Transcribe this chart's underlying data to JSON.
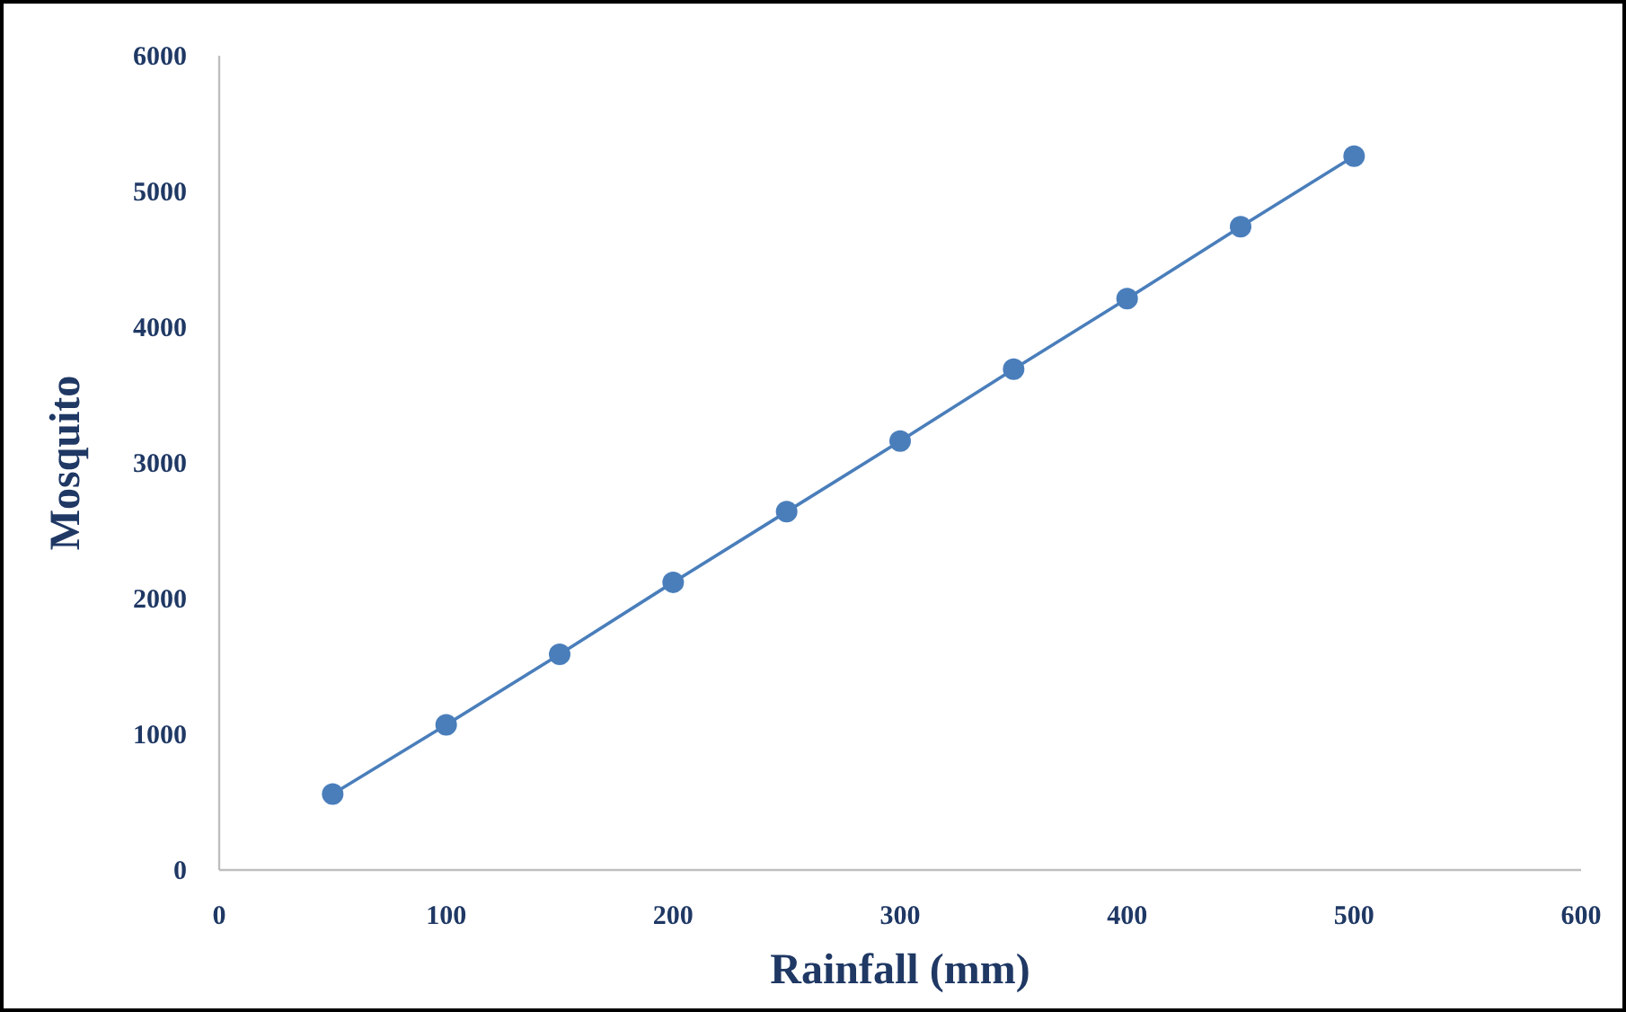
{
  "chart_data": {
    "type": "line",
    "xlabel": "Rainfall (mm)",
    "ylabel": "Mosquito",
    "x": [
      50,
      100,
      150,
      200,
      250,
      300,
      350,
      400,
      450,
      500
    ],
    "series": [
      {
        "color": "#4a7ebb",
        "values": [
          560,
          1070,
          1590,
          2120,
          2640,
          3160,
          3690,
          4210,
          4740,
          5260
        ]
      }
    ],
    "xlim": [
      0,
      600
    ],
    "xticks": [
      0,
      100,
      200,
      300,
      400,
      500,
      600
    ],
    "ylim": [
      0,
      6000
    ],
    "yticks": [
      0,
      1000,
      2000,
      3000,
      4000,
      5000,
      6000
    ],
    "marker": "circle",
    "line_style": "solid"
  }
}
